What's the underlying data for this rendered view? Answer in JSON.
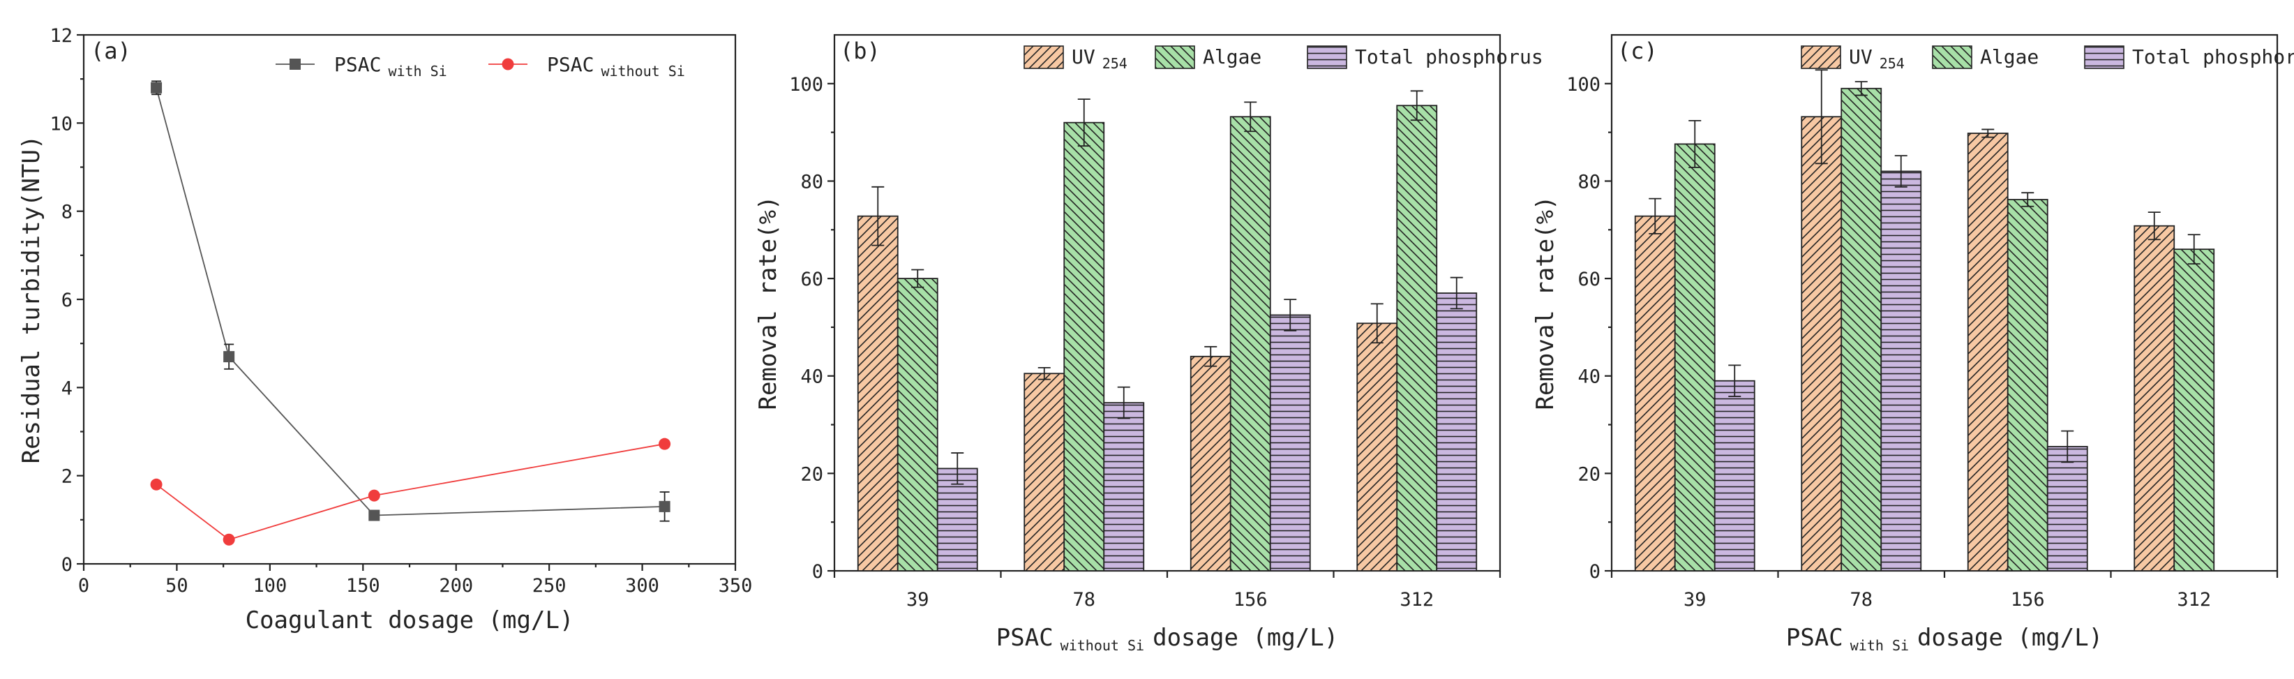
{
  "chart_data": [
    {
      "type": "line",
      "panel_label": "(a)",
      "xlabel": "Coagulant dosage (mg/L)",
      "ylabel": "Residual turbidity(NTU)",
      "xlim": [
        0,
        350
      ],
      "ylim": [
        0,
        12
      ],
      "xticks": [
        "0",
        "50",
        "100",
        "150",
        "200",
        "250",
        "300",
        "350"
      ],
      "yticks": [
        "0",
        "2",
        "4",
        "6",
        "8",
        "10",
        "12"
      ],
      "legend_position": "top-right",
      "series": [
        {
          "name": "PSAC",
          "name_sub": "with Si",
          "color": "#555555",
          "marker": "square",
          "x": [
            39,
            78,
            156,
            312
          ],
          "y": [
            10.8,
            4.7,
            1.1,
            1.3
          ],
          "err": [
            0.15,
            0.28,
            0.08,
            0.33
          ]
        },
        {
          "name": "PSAC",
          "name_sub": "without Si",
          "color": "#f03c3c",
          "marker": "circle",
          "x": [
            39,
            78,
            156,
            312
          ],
          "y": [
            1.8,
            0.55,
            1.55,
            2.72
          ],
          "err": [
            0,
            0,
            0,
            0
          ]
        }
      ]
    },
    {
      "type": "bar",
      "panel_label": "(b)",
      "xlabel": "PSAC",
      "xlabel_sub": "without Si",
      "xlabel_tail": "dosage (mg/L)",
      "ylabel": "Removal rate(%)",
      "ylim": [
        0,
        110
      ],
      "yticks": [
        "0",
        "20",
        "40",
        "60",
        "80",
        "100"
      ],
      "categories": [
        "39",
        "78",
        "156",
        "312"
      ],
      "legend_position": "top",
      "series": [
        {
          "name": "UV",
          "name_sub": "254",
          "color": "#f7c8a3",
          "pattern": "diag-up",
          "values": [
            72.8,
            40.5,
            44.0,
            50.8
          ],
          "err": [
            6.0,
            1.2,
            2.0,
            4.0
          ]
        },
        {
          "name": "Algae",
          "color": "#a8e0a8",
          "pattern": "diag-down",
          "values": [
            60.0,
            92.0,
            93.2,
            95.5
          ],
          "err": [
            1.8,
            4.8,
            3.0,
            3.0
          ]
        },
        {
          "name": "Total phosphorus",
          "color": "#cbb8e0",
          "pattern": "horizontal",
          "values": [
            21.0,
            34.5,
            52.5,
            57.0
          ],
          "err": [
            3.2,
            3.2,
            3.2,
            3.2
          ]
        }
      ]
    },
    {
      "type": "bar",
      "panel_label": "(c)",
      "xlabel": "PSAC",
      "xlabel_sub": "with Si",
      "xlabel_tail": "dosage (mg/L)",
      "ylabel": "Removal rate(%)",
      "ylim": [
        0,
        110
      ],
      "yticks": [
        "0",
        "20",
        "40",
        "60",
        "80",
        "100"
      ],
      "categories": [
        "39",
        "78",
        "156",
        "312"
      ],
      "legend_position": "top",
      "series": [
        {
          "name": "UV",
          "name_sub": "254",
          "color": "#f7c8a3",
          "pattern": "diag-up",
          "values": [
            72.8,
            93.2,
            89.8,
            70.8
          ],
          "err": [
            3.6,
            9.6,
            0.8,
            2.8
          ]
        },
        {
          "name": "Algae",
          "color": "#a8e0a8",
          "pattern": "diag-down",
          "values": [
            87.6,
            99.0,
            76.2,
            66.0
          ],
          "err": [
            4.8,
            1.4,
            1.4,
            3.0
          ]
        },
        {
          "name": "Total phosphorus",
          "color": "#cbb8e0",
          "pattern": "horizontal",
          "values": [
            39.0,
            82.0,
            25.5,
            null
          ],
          "err": [
            3.2,
            3.2,
            3.2,
            0
          ]
        }
      ]
    }
  ]
}
